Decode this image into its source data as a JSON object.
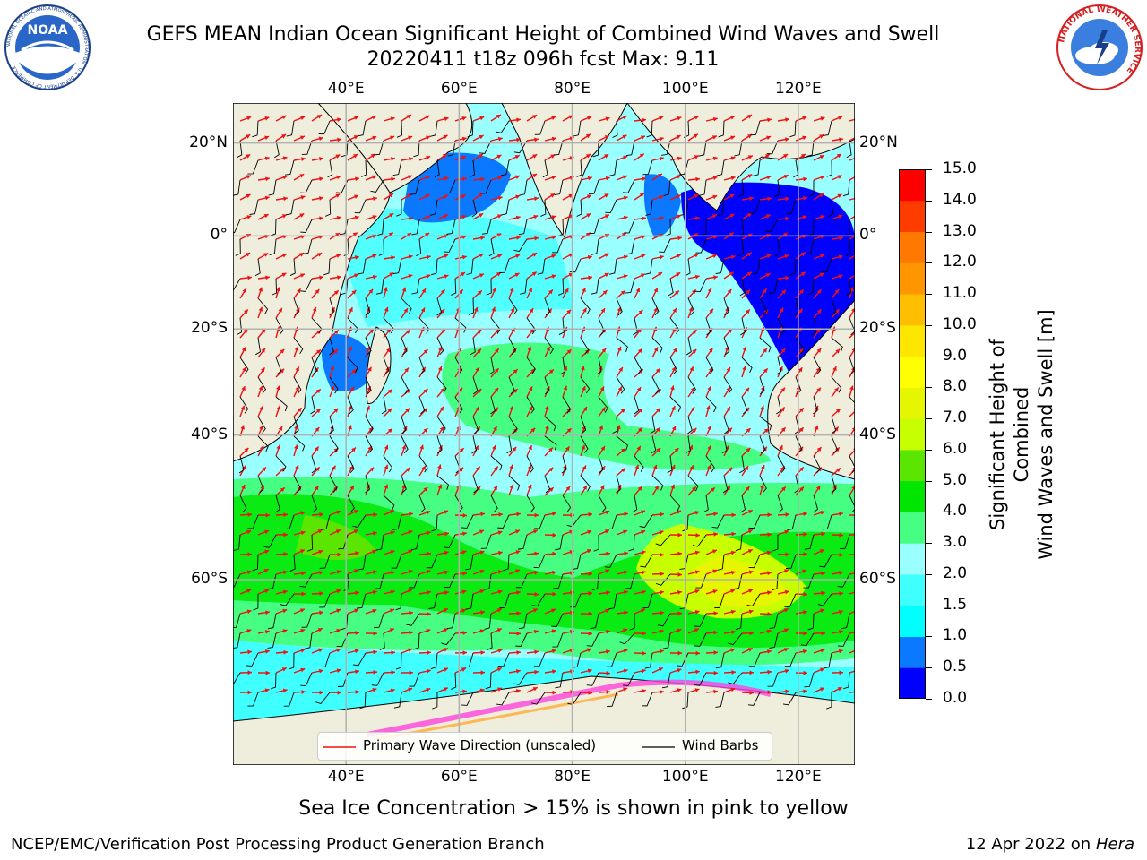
{
  "header": {
    "title_line1": "GEFS MEAN Indian Ocean Significant Height of Combined Wind Waves and Swell",
    "title_line2": "20220411 t18z 096h fcst   Max: 9.11"
  },
  "logos": {
    "noaa_text": "NOAA",
    "noaa_ring_text": "NATIONAL OCEANIC AND ATMOSPHERIC ADMINISTRATION · U.S. DEPARTMENT OF COMMERCE",
    "nws_ring_text": "NATIONAL WEATHER SERVICE"
  },
  "map": {
    "lon_range": [
      20,
      130
    ],
    "lat_range": [
      -75,
      28
    ],
    "lon_ticks_top": [
      "40°E",
      "60°E",
      "80°E",
      "100°E",
      "120°E"
    ],
    "lon_ticks_bottom": [
      "40°E",
      "60°E",
      "80°E",
      "100°E",
      "120°E"
    ],
    "lat_ticks_left": [
      "20°N",
      "0°",
      "20°S",
      "40°S",
      "60°S"
    ],
    "lat_ticks_right": [
      "20°N",
      "0°",
      "20°S",
      "40°S",
      "60°S"
    ],
    "colors": {
      "land": "#efeedd",
      "coast": "#000000",
      "grid": "#b0b0b0",
      "wave_arrow": "#ee1111",
      "wind_barb": "#000000"
    }
  },
  "legend": {
    "wave_label": "Primary Wave Direction (unscaled)",
    "wind_label": "Wind Barbs"
  },
  "colorbar": {
    "label_line1": "Significant Height of Combined",
    "label_line2": "Wind Waves and Swell [m]",
    "ticks": [
      "0.0",
      "0.5",
      "1.0",
      "1.5",
      "2.0",
      "3.0",
      "4.0",
      "5.0",
      "6.0",
      "7.0",
      "8.0",
      "9.0",
      "10.0",
      "11.0",
      "12.0",
      "13.0",
      "14.0",
      "15.0"
    ],
    "colors": [
      "#0000ff",
      "#0a78ff",
      "#00ffff",
      "#40ffff",
      "#9affff",
      "#46ff82",
      "#00e600",
      "#5ae600",
      "#c8ff00",
      "#e6f500",
      "#ffff00",
      "#ffe600",
      "#ffbe00",
      "#ff9600",
      "#ff7800",
      "#ff3c00",
      "#ff0000"
    ]
  },
  "footer": {
    "sea_ice": "Sea Ice Concentration > 15% is shown in pink to yellow",
    "org": "NCEP/EMC/Verification Post Processing Product Generation Branch",
    "date": "12 Apr 2022 on ",
    "machine": "Hera"
  }
}
